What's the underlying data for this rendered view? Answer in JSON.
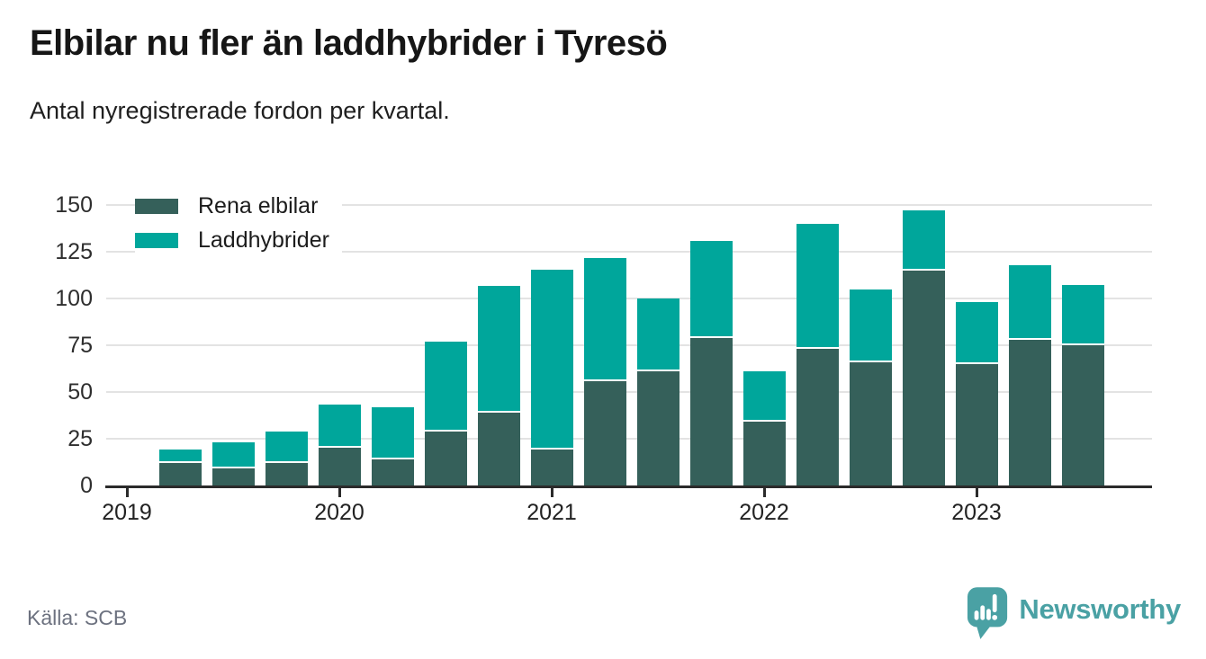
{
  "header": {
    "title": "Elbilar nu fler än laddhybrider i Tyresö",
    "subtitle": "Antal nyregistrerade fordon per kvartal."
  },
  "legend": {
    "items": [
      {
        "label": "Rena elbilar",
        "color": "#35605a"
      },
      {
        "label": "Laddhybrider",
        "color": "#00a69b"
      }
    ]
  },
  "chart_data": {
    "type": "bar",
    "stacked": true,
    "title": "Elbilar nu fler än laddhybrider i Tyresö",
    "subtitle": "Antal nyregistrerade fordon per kvartal.",
    "x": [
      "2019 Q2",
      "2019 Q3",
      "2019 Q4",
      "2020 Q1",
      "2020 Q2",
      "2020 Q3",
      "2020 Q4",
      "2021 Q1",
      "2021 Q2",
      "2021 Q3",
      "2021 Q4",
      "2022 Q1",
      "2022 Q2",
      "2022 Q3",
      "2022 Q4",
      "2023 Q1",
      "2023 Q2",
      "2023 Q3"
    ],
    "series": [
      {
        "name": "Rena elbilar",
        "color": "#35605a",
        "values": [
          12,
          9,
          12,
          20,
          14,
          29,
          39,
          19,
          56,
          61,
          79,
          34,
          73,
          66,
          115,
          65,
          78,
          75
        ]
      },
      {
        "name": "Laddhybrider",
        "color": "#00a69b",
        "values": [
          7,
          14,
          17,
          23,
          28,
          48,
          68,
          96,
          66,
          39,
          52,
          27,
          67,
          39,
          32,
          33,
          40,
          32
        ]
      }
    ],
    "ylim": [
      0,
      150
    ],
    "yticks": [
      0,
      25,
      50,
      75,
      100,
      125,
      150
    ],
    "xticks": [
      "2019",
      "2020",
      "2021",
      "2022",
      "2023"
    ],
    "grid": true,
    "legend_position": "top-left"
  },
  "footer": {
    "source": "Källa: SCB",
    "brand": "Newsworthy"
  },
  "colors": {
    "dark_series": "#35605a",
    "teal_series": "#00a69b",
    "gridline": "#e3e3e3",
    "axis": "#2b2b2b",
    "source_text": "#6c717f",
    "brand_teal": "#4aa1a4"
  }
}
